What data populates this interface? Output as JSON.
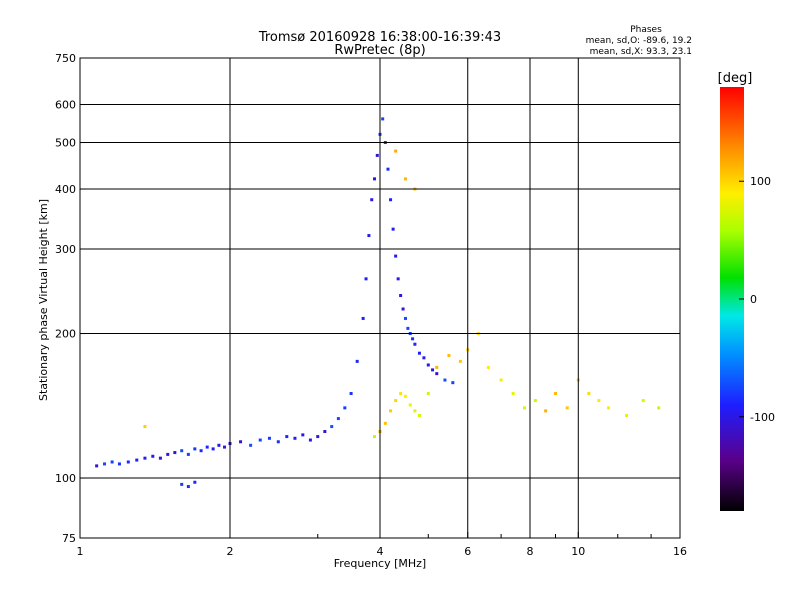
{
  "chart_data": {
    "type": "scatter",
    "title": "Tromsø 20160928 16:38:00-16:39:43",
    "subtitle": "RwPretec (8p)",
    "stats_heading": "Phases",
    "stats_lines": [
      "mean, sd,O: -89.6, 19.2",
      "mean, sd,X:  93.3, 23.1"
    ],
    "xlabel": "Frequency [MHz]",
    "ylabel": "Stationary phase Virtual Height [km]",
    "xscale": "log",
    "yscale": "log",
    "xlim": [
      1,
      16
    ],
    "ylim": [
      75,
      750
    ],
    "xticks": [
      1,
      2,
      4,
      6,
      8,
      10,
      16
    ],
    "xtick_labels": [
      "1",
      "2",
      "4",
      "6",
      "8",
      "10",
      "16"
    ],
    "xminor": [
      3,
      5,
      7,
      9,
      12,
      14
    ],
    "yticks": [
      75,
      100,
      200,
      300,
      400,
      500,
      600,
      750
    ],
    "ytick_labels": [
      "75",
      "100",
      "200",
      "300",
      "400",
      "500",
      "600",
      "750"
    ],
    "grid": true,
    "colorbar": {
      "label": "[deg]",
      "range": [
        -180,
        180
      ],
      "ticks": [
        100,
        0,
        -100
      ],
      "tick_labels": [
        "100",
        "0",
        "-100"
      ]
    },
    "series": [
      {
        "mode": "O",
        "phase_mean": -89.6,
        "phase_sd": 19.2,
        "x": [
          1.08,
          1.12,
          1.16,
          1.2,
          1.25,
          1.3,
          1.35,
          1.4,
          1.45,
          1.5,
          1.55,
          1.6,
          1.65,
          1.7,
          1.75,
          1.8,
          1.85,
          1.9,
          1.95,
          2.0,
          2.1,
          2.2,
          2.3,
          2.4,
          2.5,
          2.6,
          2.7,
          2.8,
          2.9,
          3.0,
          3.1,
          3.2,
          3.3,
          3.4,
          3.5,
          3.6,
          3.7,
          3.75,
          3.8,
          3.85,
          3.9,
          3.95,
          4.0,
          4.05,
          4.1,
          4.15,
          4.2,
          4.25,
          4.3,
          4.35,
          4.4,
          4.45,
          4.5,
          4.55,
          4.6,
          4.65,
          4.7,
          4.8,
          4.9,
          5.0,
          5.1,
          5.2,
          5.4,
          5.6,
          1.6,
          1.65,
          1.7
        ],
        "y": [
          106,
          107,
          108,
          107,
          108,
          109,
          110,
          111,
          110,
          112,
          113,
          114,
          112,
          115,
          114,
          116,
          115,
          117,
          116,
          118,
          119,
          117,
          120,
          121,
          119,
          122,
          121,
          123,
          120,
          122,
          125,
          128,
          133,
          140,
          150,
          175,
          215,
          260,
          320,
          380,
          420,
          470,
          520,
          560,
          500,
          440,
          380,
          330,
          290,
          260,
          240,
          225,
          215,
          205,
          200,
          195,
          190,
          182,
          178,
          172,
          168,
          165,
          160,
          158,
          97,
          96,
          98
        ]
      },
      {
        "mode": "X",
        "phase_mean": 93.3,
        "phase_sd": 23.1,
        "x": [
          3.9,
          4.0,
          4.1,
          4.2,
          4.3,
          4.4,
          4.5,
          4.6,
          4.7,
          4.8,
          5.0,
          5.2,
          5.5,
          5.8,
          6.0,
          6.3,
          6.6,
          7.0,
          7.4,
          7.8,
          8.2,
          8.6,
          9.0,
          9.5,
          10.0,
          10.5,
          11.0,
          11.5,
          12.5,
          13.5,
          14.5,
          4.3,
          4.5,
          4.7,
          1.35
        ],
        "y": [
          122,
          125,
          130,
          138,
          145,
          150,
          148,
          142,
          138,
          135,
          150,
          170,
          180,
          175,
          185,
          200,
          170,
          160,
          150,
          140,
          145,
          138,
          150,
          140,
          160,
          150,
          145,
          140,
          135,
          145,
          140,
          480,
          420,
          400,
          128
        ]
      }
    ]
  }
}
